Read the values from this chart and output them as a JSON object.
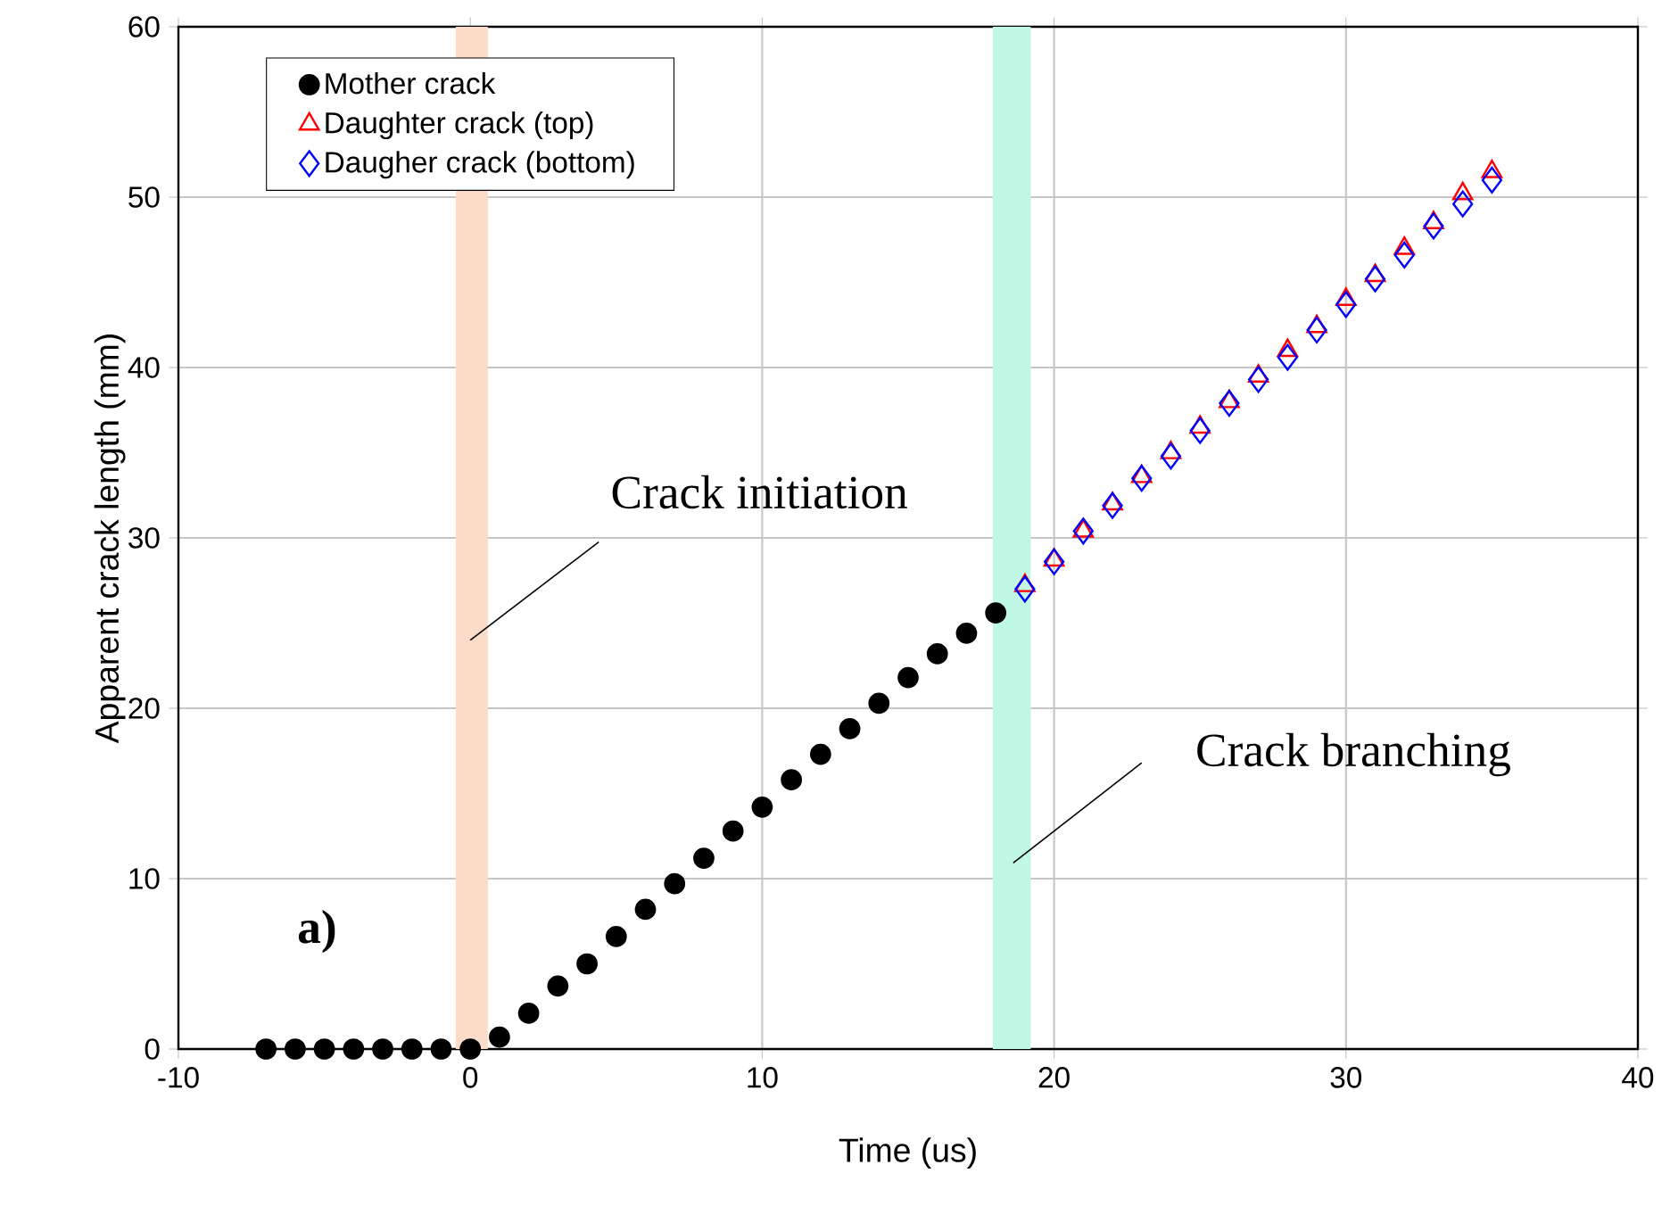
{
  "chart_data": {
    "type": "scatter",
    "xlabel": "Time (us)",
    "ylabel": "Apparent crack length (mm)",
    "xlim": [
      -10,
      40
    ],
    "ylim": [
      0,
      60
    ],
    "xticks": [
      -10,
      0,
      10,
      20,
      30,
      40
    ],
    "yticks": [
      0,
      10,
      20,
      30,
      40,
      50,
      60
    ],
    "grid": true,
    "legend": "top left",
    "series": [
      {
        "name": "Mother crack",
        "color": "#000000",
        "marker": "circle",
        "x": [
          -7,
          -6,
          -5,
          -4,
          -3,
          -2,
          -1,
          0,
          1,
          2,
          3,
          4,
          5,
          6,
          7,
          8,
          9,
          10,
          11,
          12,
          13,
          14,
          15,
          16,
          17,
          18
        ],
        "values": [
          0,
          0,
          0,
          0,
          0,
          0,
          0,
          0,
          0.7,
          2.1,
          3.7,
          5.0,
          6.6,
          8.2,
          9.7,
          11.2,
          12.8,
          14.2,
          15.8,
          17.3,
          18.8,
          20.3,
          21.8,
          23.2,
          24.4,
          25.6
        ]
      },
      {
        "name": "Daughter crack (top)",
        "color": "#ff0000",
        "marker": "triangle",
        "x": [
          19,
          20,
          21,
          22,
          23,
          24,
          25,
          26,
          27,
          28,
          29,
          30,
          31,
          32,
          33,
          34,
          35
        ],
        "values": [
          27.2,
          28.7,
          30.4,
          32.0,
          33.6,
          35.0,
          36.5,
          38.0,
          39.5,
          41.0,
          42.4,
          44.0,
          45.4,
          47.0,
          48.5,
          50.2,
          51.5
        ]
      },
      {
        "name": "Daugher crack (bottom)",
        "color": "#0000ff",
        "marker": "diamond",
        "x": [
          19,
          20,
          21,
          22,
          23,
          24,
          25,
          26,
          27,
          28,
          29,
          30,
          31,
          32,
          33,
          34,
          35
        ],
        "values": [
          27.0,
          28.6,
          30.4,
          31.9,
          33.5,
          34.8,
          36.3,
          37.9,
          39.3,
          40.6,
          42.2,
          43.7,
          45.2,
          46.6,
          48.3,
          49.6,
          51.0
        ]
      }
    ],
    "bands": [
      {
        "axis": "x",
        "from": -0.5,
        "to": 0.6,
        "color": "#fadcc8"
      },
      {
        "axis": "x",
        "from": 17.9,
        "to": 19.2,
        "color": "#bff8e4"
      }
    ],
    "annotations": [
      "Crack initiation",
      "Crack branching",
      "a)"
    ]
  }
}
